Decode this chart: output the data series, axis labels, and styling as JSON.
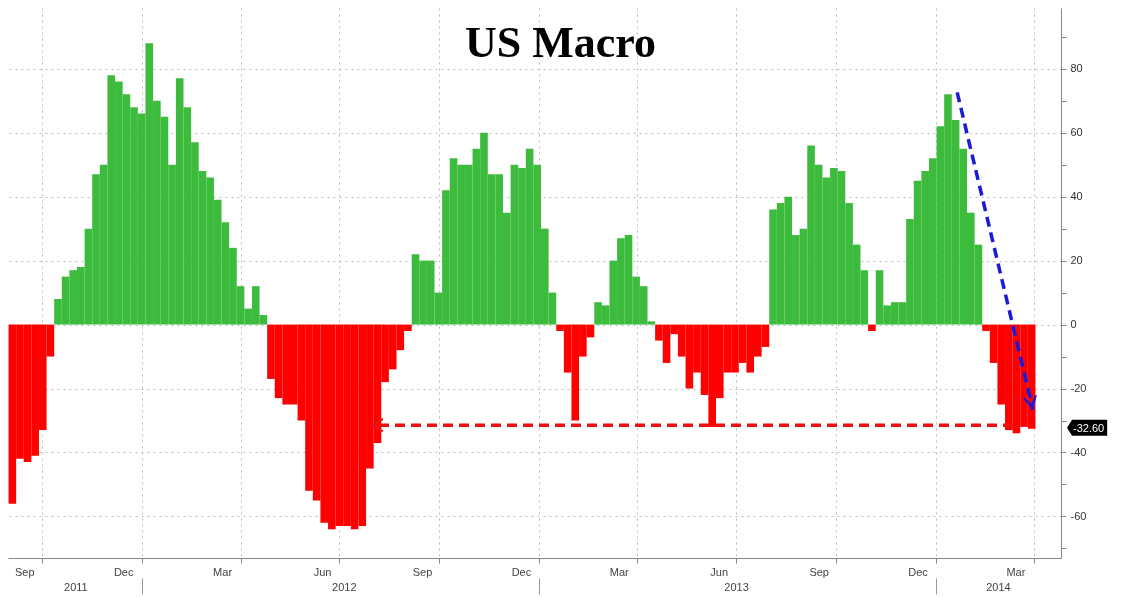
{
  "chart_data": {
    "type": "bar",
    "title": "US Macro",
    "x": [
      "2011-09-04",
      "2011-09-11",
      "2011-09-18",
      "2011-09-25",
      "2011-10-02",
      "2011-10-09",
      "2011-10-16",
      "2011-10-23",
      "2011-10-30",
      "2011-11-06",
      "2011-11-13",
      "2011-11-20",
      "2011-11-27",
      "2011-12-04",
      "2011-12-11",
      "2011-12-18",
      "2011-12-25",
      "2012-01-01",
      "2012-01-08",
      "2012-01-15",
      "2012-01-22",
      "2012-01-29",
      "2012-02-05",
      "2012-02-12",
      "2012-02-19",
      "2012-02-26",
      "2012-03-04",
      "2012-03-11",
      "2012-03-18",
      "2012-03-25",
      "2012-04-01",
      "2012-04-08",
      "2012-04-15",
      "2012-04-22",
      "2012-04-29",
      "2012-05-06",
      "2012-05-13",
      "2012-05-20",
      "2012-05-27",
      "2012-06-03",
      "2012-06-10",
      "2012-06-17",
      "2012-06-24",
      "2012-07-01",
      "2012-07-08",
      "2012-07-15",
      "2012-07-22",
      "2012-07-29",
      "2012-08-05",
      "2012-08-12",
      "2012-08-19",
      "2012-08-26",
      "2012-09-02",
      "2012-09-09",
      "2012-09-16",
      "2012-09-23",
      "2012-09-30",
      "2012-10-07",
      "2012-10-14",
      "2012-10-21",
      "2012-10-28",
      "2012-11-04",
      "2012-11-11",
      "2012-11-18",
      "2012-11-25",
      "2012-12-02",
      "2012-12-09",
      "2012-12-16",
      "2012-12-23",
      "2012-12-30",
      "2013-01-06",
      "2013-01-13",
      "2013-01-20",
      "2013-01-27",
      "2013-02-03",
      "2013-02-10",
      "2013-02-17",
      "2013-02-24",
      "2013-03-03",
      "2013-03-10",
      "2013-03-17",
      "2013-03-24",
      "2013-03-31",
      "2013-04-07",
      "2013-04-14",
      "2013-04-21",
      "2013-04-28",
      "2013-05-05",
      "2013-05-12",
      "2013-05-19",
      "2013-05-26",
      "2013-06-02",
      "2013-06-09",
      "2013-06-16",
      "2013-06-23",
      "2013-06-30",
      "2013-07-07",
      "2013-07-14",
      "2013-07-21",
      "2013-07-28",
      "2013-08-04",
      "2013-08-11",
      "2013-08-18",
      "2013-08-25",
      "2013-09-01",
      "2013-09-08",
      "2013-09-15",
      "2013-09-22",
      "2013-09-29",
      "2013-10-06",
      "2013-10-13",
      "2013-10-20",
      "2013-10-27",
      "2013-11-03",
      "2013-11-10",
      "2013-11-17",
      "2013-11-24",
      "2013-12-01",
      "2013-12-08",
      "2013-12-15",
      "2013-12-22",
      "2013-12-29",
      "2014-01-05",
      "2014-01-12",
      "2014-01-19",
      "2014-01-26",
      "2014-02-02",
      "2014-02-09",
      "2014-02-16",
      "2014-02-23",
      "2014-03-02",
      "2014-03-09",
      "2014-03-16",
      "2014-03-23",
      "2014-03-30"
    ],
    "values": [
      -56,
      -42,
      -43,
      -41,
      -33,
      -10,
      8,
      15,
      17,
      18,
      30,
      47,
      50,
      78,
      76,
      72,
      68,
      66,
      88,
      70,
      65,
      50,
      77,
      68,
      57,
      48,
      46,
      39,
      32,
      24,
      12,
      5,
      12,
      3,
      -17,
      -23,
      -25,
      -25,
      -30,
      -52,
      -55,
      -62,
      -64,
      -63,
      -63,
      -64,
      -63,
      -45,
      -37,
      -18,
      -14,
      -8,
      -2,
      22,
      20,
      20,
      10,
      42,
      52,
      50,
      50,
      55,
      60,
      47,
      47,
      35,
      50,
      49,
      55,
      50,
      30,
      10,
      -2,
      -15,
      -30,
      -10,
      -4,
      7,
      6,
      20,
      27,
      28,
      15,
      12,
      1,
      -5,
      -12,
      -3,
      -10,
      -20,
      -15,
      -22,
      -32,
      -23,
      -15,
      -15,
      -12,
      -15,
      -10,
      -7,
      36,
      38,
      40,
      28,
      30,
      56,
      50,
      46,
      49,
      48,
      38,
      25,
      17,
      -2,
      17,
      6,
      7,
      7,
      33,
      45,
      48,
      52,
      62,
      72,
      64,
      55,
      35,
      25,
      -2,
      -12,
      -25,
      -33,
      -34,
      -32,
      -32.6
    ],
    "colors": [
      "#ff0000",
      "#ff0000",
      "#ff0000",
      "#ff0000",
      "#ff0000",
      "#ff0000",
      "#3dbb3d",
      "#3dbb3d",
      "#3dbb3d",
      "#3dbb3d",
      "#3dbb3d",
      "#3dbb3d",
      "#3dbb3d",
      "#3dbb3d",
      "#3dbb3d",
      "#3dbb3d",
      "#3dbb3d",
      "#3dbb3d",
      "#3dbb3d",
      "#3dbb3d",
      "#3dbb3d",
      "#3dbb3d",
      "#3dbb3d",
      "#3dbb3d",
      "#3dbb3d",
      "#3dbb3d",
      "#3dbb3d",
      "#3dbb3d",
      "#3dbb3d",
      "#3dbb3d",
      "#3dbb3d",
      "#3dbb3d",
      "#3dbb3d",
      "#3dbb3d",
      "#ff0000",
      "#ff0000",
      "#ff0000",
      "#ff0000",
      "#ff0000",
      "#ff0000",
      "#ff0000",
      "#ff0000",
      "#ff0000",
      "#ff0000",
      "#ff0000",
      "#ff0000",
      "#ff0000",
      "#ff0000",
      "#ff0000",
      "#ff0000",
      "#ff0000",
      "#ff0000",
      "#ff0000",
      "#3dbb3d",
      "#3dbb3d",
      "#3dbb3d",
      "#3dbb3d",
      "#3dbb3d",
      "#3dbb3d",
      "#3dbb3d",
      "#3dbb3d",
      "#3dbb3d",
      "#3dbb3d",
      "#3dbb3d",
      "#3dbb3d",
      "#3dbb3d",
      "#3dbb3d",
      "#3dbb3d",
      "#3dbb3d",
      "#3dbb3d",
      "#3dbb3d",
      "#3dbb3d",
      "#ff0000",
      "#ff0000",
      "#ff0000",
      "#ff0000",
      "#ff0000",
      "#3dbb3d",
      "#3dbb3d",
      "#3dbb3d",
      "#3dbb3d",
      "#3dbb3d",
      "#3dbb3d",
      "#3dbb3d",
      "#3dbb3d",
      "#ff0000",
      "#ff0000",
      "#ff0000",
      "#ff0000",
      "#ff0000",
      "#ff0000",
      "#ff0000",
      "#ff0000",
      "#ff0000",
      "#ff0000",
      "#ff0000",
      "#ff0000",
      "#ff0000",
      "#ff0000",
      "#ff0000",
      "#3dbb3d",
      "#3dbb3d",
      "#3dbb3d",
      "#3dbb3d",
      "#3dbb3d",
      "#3dbb3d",
      "#3dbb3d",
      "#3dbb3d",
      "#3dbb3d",
      "#3dbb3d",
      "#3dbb3d",
      "#3dbb3d",
      "#3dbb3d",
      "#ff0000",
      "#3dbb3d",
      "#3dbb3d",
      "#3dbb3d",
      "#3dbb3d",
      "#3dbb3d",
      "#3dbb3d",
      "#3dbb3d",
      "#3dbb3d",
      "#3dbb3d",
      "#3dbb3d",
      "#3dbb3d",
      "#3dbb3d",
      "#3dbb3d",
      "#3dbb3d",
      "#ff0000",
      "#ff0000",
      "#ff0000",
      "#ff0000",
      "#ff0000",
      "#ff0000",
      "#ff0000"
    ],
    "xlim": [
      "2011-08-31",
      "2014-04-26"
    ],
    "xticks": [
      {
        "value": "2011-09-15",
        "label": "Sep"
      },
      {
        "value": "2011-10-01",
        "label": null
      },
      {
        "value": "2011-12-15",
        "label": "Dec"
      },
      {
        "value": "2012-01-01",
        "label": null
      },
      {
        "value": "2012-03-15",
        "label": "Mar"
      },
      {
        "value": "2012-04-01",
        "label": null
      },
      {
        "value": "2012-06-15",
        "label": "Jun"
      },
      {
        "value": "2012-07-01",
        "label": null
      },
      {
        "value": "2012-09-15",
        "label": "Sep"
      },
      {
        "value": "2012-10-01",
        "label": null
      },
      {
        "value": "2012-12-15",
        "label": "Dec"
      },
      {
        "value": "2013-01-01",
        "label": null
      },
      {
        "value": "2013-03-15",
        "label": "Mar"
      },
      {
        "value": "2013-04-01",
        "label": null
      },
      {
        "value": "2013-06-15",
        "label": "Jun"
      },
      {
        "value": "2013-07-01",
        "label": null
      },
      {
        "value": "2013-09-15",
        "label": "Sep"
      },
      {
        "value": "2013-10-01",
        "label": null
      },
      {
        "value": "2013-12-15",
        "label": "Dec"
      },
      {
        "value": "2014-01-01",
        "label": null
      },
      {
        "value": "2014-03-15",
        "label": "Mar"
      },
      {
        "value": "2014-04-01",
        "label": null
      }
    ],
    "x2lim": [
      "2011-08-31",
      "2014-04-26"
    ],
    "x2ticks": [
      {
        "value": "2011-11-01",
        "label": "2011"
      },
      {
        "value": "2012-01-01",
        "label": null
      },
      {
        "value": "2012-07-05",
        "label": "2012"
      },
      {
        "value": "2013-01-01",
        "label": null
      },
      {
        "value": "2013-07-01",
        "label": "2013"
      },
      {
        "value": "2014-01-01",
        "label": null
      },
      {
        "value": "2014-02-27",
        "label": "2014"
      }
    ],
    "ylim": [
      -73,
      99
    ],
    "yticks": [
      {
        "value": -70,
        "label": null
      },
      -60,
      {
        "value": -50,
        "label": null
      },
      -40,
      {
        "value": -30,
        "label": null
      },
      -20,
      {
        "value": -10,
        "label": null
      },
      0,
      {
        "value": 10,
        "label": null
      },
      20,
      {
        "value": 30,
        "label": null
      },
      40,
      {
        "value": 50,
        "label": null
      },
      60,
      {
        "value": 70,
        "label": null
      },
      80,
      {
        "value": 90,
        "label": null
      }
    ],
    "grid": true,
    "annotations": [
      "-32.60"
    ]
  }
}
